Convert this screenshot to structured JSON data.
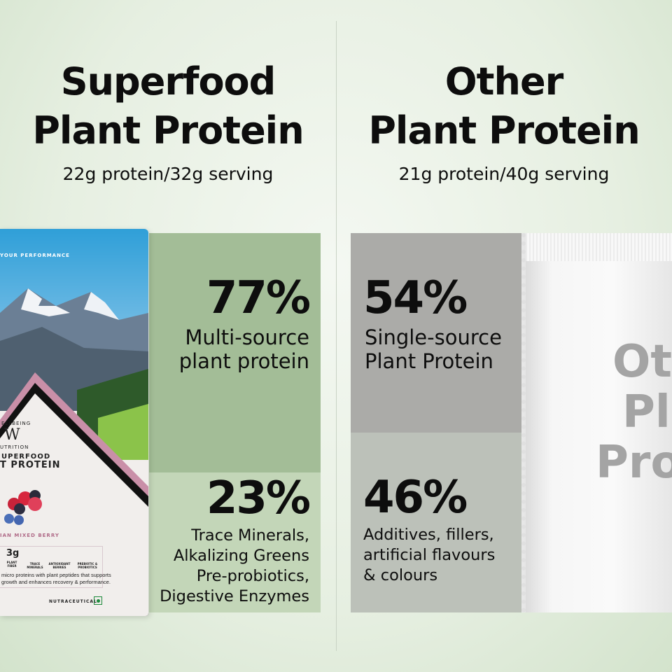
{
  "left": {
    "title_line1": "Superfood",
    "title_line2": "Plant Protein",
    "serving": "22g protein/32g serving",
    "top_stat": {
      "percent": "77%",
      "label_line1": "Multi-source",
      "label_line2": "plant protein"
    },
    "bottom_stat": {
      "percent": "23%",
      "lines": [
        "Trace Minerals,",
        "Alkalizing Greens",
        "Pre-probiotics,",
        "Digestive Enzymes"
      ]
    },
    "colors": {
      "top_panel": "#a3bd97",
      "bottom_panel": "#c3d6b8"
    },
    "pack": {
      "tagline": "YOUR PERFORMANCE",
      "brand_top": "ELLBEING",
      "brand_bottom": "UTRITION",
      "logo_letter": "W",
      "line1": "UPERFOOD",
      "line2": "T PROTEIN",
      "flavour": "IAN MIXED BERRY",
      "fiber_value": "3g",
      "fiber_label": "PLANT FIBER",
      "badges": [
        "TRACE MINERALS",
        "ANTIOXIDANT BERRIES",
        "PREBIOTIC & PROBIOTICS"
      ],
      "desc_line1": "micro proteins with plant peptides that supports",
      "desc_line2": "growth and enhances recovery & performance.",
      "category": "NUTRACEUTICAL"
    }
  },
  "right": {
    "title_line1": "Other",
    "title_line2": "Plant Protein",
    "serving": "21g protein/40g serving",
    "top_stat": {
      "percent": "54%",
      "label_line1": "Single-source",
      "label_line2": "Plant Protein"
    },
    "bottom_stat": {
      "percent": "46%",
      "lines": [
        "Additives, fillers,",
        "artificial flavours",
        "& colours"
      ]
    },
    "colors": {
      "top_panel": "#ababa8",
      "bottom_panel": "#bcc1b9"
    },
    "pouch_text": [
      "Ot",
      "Pla",
      "Pro"
    ]
  }
}
